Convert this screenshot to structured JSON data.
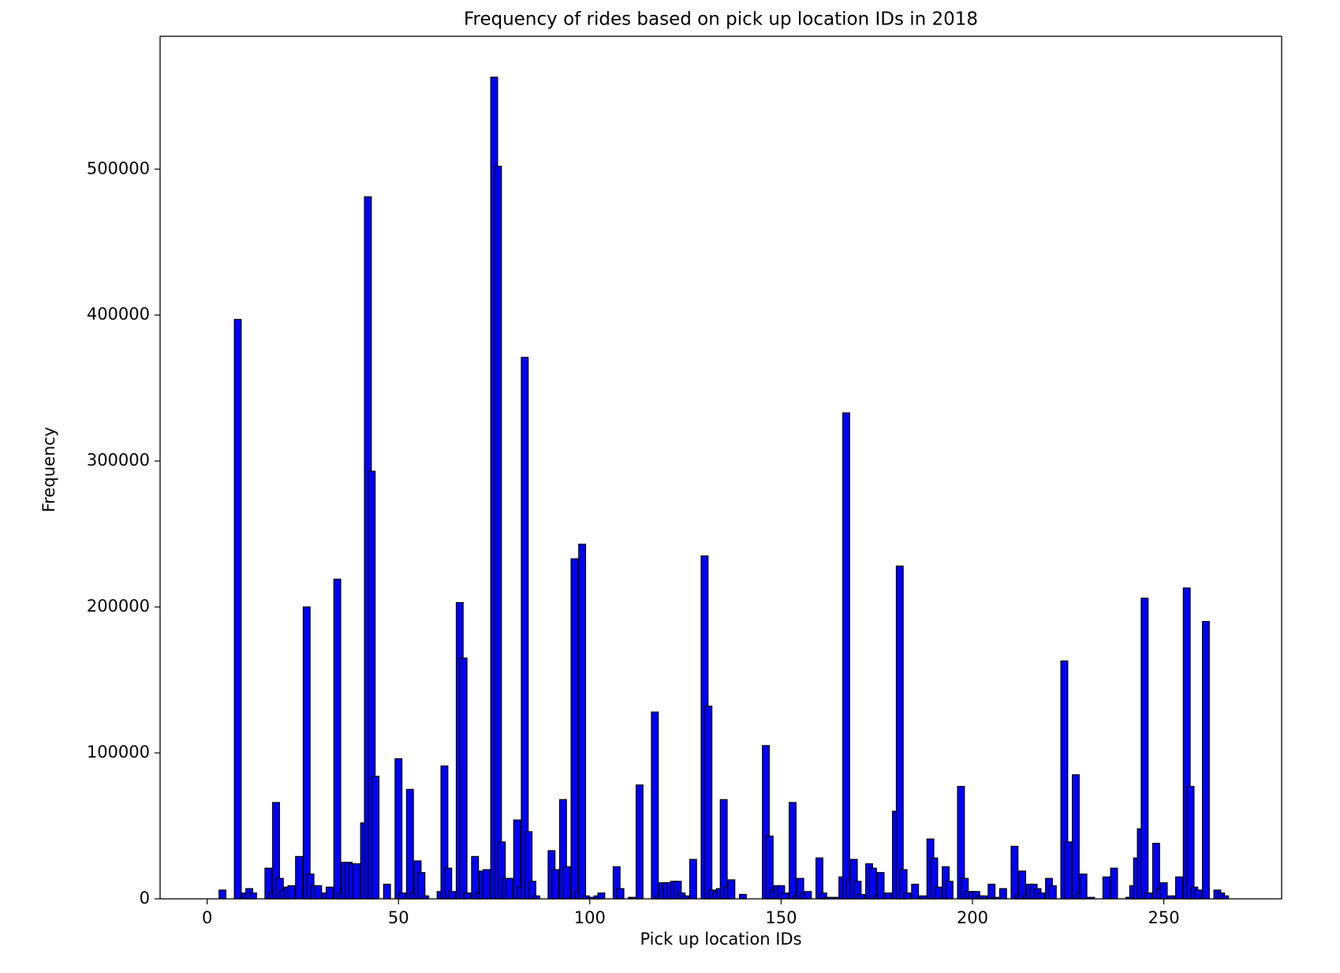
{
  "chart_data": {
    "type": "bar",
    "title": "Frequency of rides based on pick up location IDs in 2018",
    "xlabel": "Pick up location IDs",
    "ylabel": "Frequency",
    "color": "#0000ff",
    "edgecolor": "#000000",
    "x": [
      4,
      8,
      10,
      11,
      12,
      16,
      17,
      18,
      19,
      20,
      21,
      22,
      24,
      26,
      27,
      28,
      29,
      31,
      32,
      34,
      35,
      36,
      37,
      38,
      39,
      41,
      42,
      43,
      44,
      47,
      50,
      51,
      53,
      54,
      55,
      56,
      57,
      61,
      62,
      63,
      64,
      66,
      67,
      68,
      70,
      71,
      72,
      73,
      75,
      76,
      77,
      78,
      79,
      81,
      82,
      83,
      84,
      85,
      86,
      90,
      91,
      93,
      94,
      96,
      97,
      98,
      99,
      101,
      102,
      103,
      107,
      108,
      111,
      113,
      117,
      118,
      119,
      120,
      121,
      122,
      123,
      124,
      125,
      127,
      130,
      131,
      132,
      133,
      134,
      135,
      136,
      137,
      140,
      146,
      147,
      148,
      149,
      150,
      151,
      153,
      154,
      155,
      156,
      157,
      160,
      161,
      162,
      163,
      165,
      166,
      167,
      168,
      169,
      170,
      171,
      173,
      174,
      175,
      176,
      178,
      180,
      181,
      182,
      183,
      185,
      187,
      189,
      190,
      191,
      193,
      194,
      197,
      198,
      199,
      200,
      201,
      202,
      203,
      205,
      206,
      208,
      211,
      212,
      213,
      214,
      215,
      216,
      217,
      218,
      220,
      221,
      224,
      225,
      227,
      228,
      229,
      231,
      235,
      237,
      241,
      242,
      243,
      244,
      245,
      246,
      248,
      249,
      250,
      252,
      254,
      256,
      257,
      258,
      259,
      261,
      264,
      265,
      266
    ],
    "values": [
      6000,
      397000,
      4000,
      7000,
      4000,
      21000,
      4000,
      66000,
      14000,
      6000,
      8000,
      9000,
      29000,
      200000,
      17000,
      9000,
      9000,
      4000,
      8000,
      219000,
      4000,
      25000,
      25000,
      24000,
      24000,
      52000,
      481000,
      293000,
      84000,
      10000,
      96000,
      4000,
      75000,
      4000,
      26000,
      18000,
      2000,
      5000,
      91000,
      21000,
      5000,
      203000,
      165000,
      4000,
      29000,
      4000,
      19000,
      20000,
      563000,
      502000,
      39000,
      14000,
      14000,
      54000,
      8000,
      371000,
      46000,
      12000,
      2000,
      33000,
      20000,
      68000,
      22000,
      233000,
      5000,
      243000,
      2000,
      1000,
      2000,
      4000,
      22000,
      7000,
      1000,
      78000,
      128000,
      2000,
      11000,
      11000,
      11000,
      12000,
      12000,
      4000,
      2000,
      27000,
      235000,
      132000,
      6000,
      5000,
      7000,
      68000,
      8000,
      13000,
      3000,
      105000,
      43000,
      6000,
      9000,
      9000,
      4000,
      66000,
      2000,
      14000,
      4000,
      5000,
      28000,
      4000,
      1000,
      1000,
      1000,
      15000,
      333000,
      13000,
      27000,
      12000,
      3000,
      24000,
      21000,
      2000,
      18000,
      4000,
      60000,
      228000,
      20000,
      4000,
      10000,
      2000,
      41000,
      28000,
      8000,
      22000,
      12000,
      77000,
      14000,
      5000,
      5000,
      5000,
      2000,
      2000,
      10000,
      1000,
      7000,
      36000,
      2000,
      19000,
      2000,
      10000,
      10000,
      7000,
      4000,
      14000,
      9000,
      163000,
      39000,
      85000,
      4000,
      17000,
      1000,
      15000,
      21000,
      1000,
      9000,
      28000,
      48000,
      206000,
      4000,
      38000,
      7000,
      11000,
      2000,
      15000,
      213000,
      77000,
      8000,
      6000,
      190000,
      6000,
      4000,
      2000
    ],
    "xlim": [
      -12.3,
      280.8
    ],
    "ylim": [
      0,
      591000
    ],
    "xticks": [
      0,
      50,
      100,
      150,
      200,
      250
    ],
    "yticks": [
      0,
      100000,
      200000,
      300000,
      400000,
      500000
    ]
  }
}
